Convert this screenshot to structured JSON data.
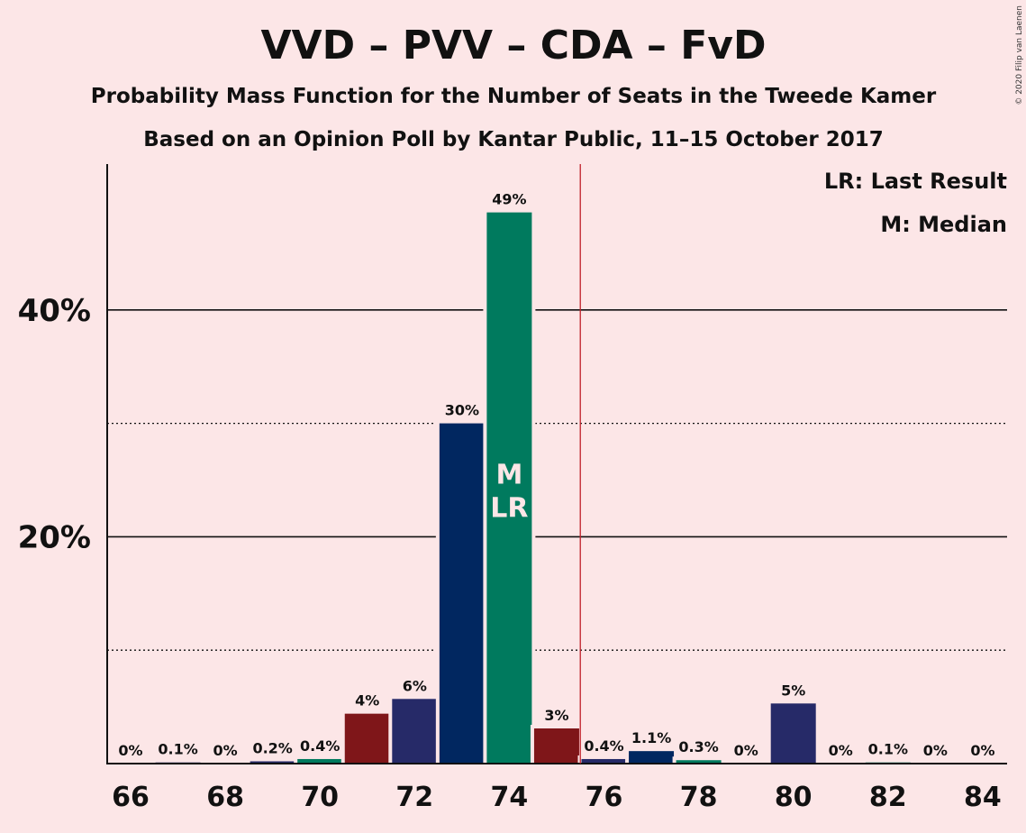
{
  "chart_data": {
    "type": "bar",
    "title": "VVD – PVV – CDA – FvD",
    "subtitle1": "Probability Mass Function for the Number of Seats in the Tweede Kamer",
    "subtitle2": "Based on an Opinion Poll by Kantar Public, 11–15 October 2017",
    "copyright": "© 2020 Filip van Laenen",
    "legend": {
      "lr": "LR: Last Result",
      "m": "M: Median",
      "placement": "top-right"
    },
    "xlabel": "",
    "ylabel": "",
    "ylim": [
      0,
      53
    ],
    "y_major_ticks": [
      20,
      40
    ],
    "y_major_tick_labels": [
      "20%",
      "40%"
    ],
    "y_minor_ticks": [
      10,
      30
    ],
    "x_tick_values": [
      66,
      68,
      70,
      72,
      74,
      76,
      78,
      80,
      82,
      84
    ],
    "x": [
      66,
      67,
      68,
      69,
      70,
      71,
      72,
      73,
      74,
      75,
      76,
      77,
      78,
      79,
      80,
      81,
      82,
      83,
      84
    ],
    "values": [
      0,
      0.1,
      0,
      0.2,
      0.4,
      4.4,
      5.7,
      30,
      48.6,
      3.1,
      0.4,
      1.1,
      0.3,
      0,
      5.3,
      0,
      0.1,
      0,
      0
    ],
    "labels": [
      "0%",
      "0.1%",
      "0%",
      "0.2%",
      "0.4%",
      "4%",
      "6%",
      "30%",
      "49%",
      "3%",
      "0.4%",
      "1.1%",
      "0.3%",
      "0%",
      "5%",
      "0%",
      "0.1%",
      "0%",
      "0%"
    ],
    "bar_colors": [
      "#262a68",
      "#262a68",
      "#007a5e",
      "#262a68",
      "#007a5e",
      "#7f1619",
      "#262a68",
      "#012760",
      "#007a5e",
      "#7f1619",
      "#262a68",
      "#012760",
      "#007a5e",
      "#7f1619",
      "#262a68",
      "#012760",
      "#007a5e",
      "#7f1619",
      "#262a68"
    ],
    "majority_line_x": 75.5,
    "majority_line_color": "#c0202a",
    "median_seat": 74,
    "last_result_seat": 74,
    "median_marker": "M",
    "last_result_marker": "LR"
  }
}
